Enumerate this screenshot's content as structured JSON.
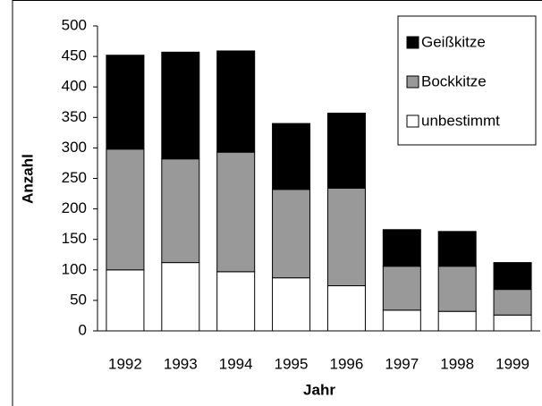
{
  "chart_data": {
    "type": "stacked_bar",
    "x_label": "Jahr",
    "y_label": "Anzahl",
    "categories": [
      "1992",
      "1993",
      "1994",
      "1995",
      "1996",
      "1997",
      "1998",
      "1999"
    ],
    "series": [
      {
        "name": "unbestimmt",
        "color": "#ffffff",
        "values": [
          100,
          112,
          97,
          87,
          74,
          34,
          32,
          26
        ]
      },
      {
        "name": "Bockkitze",
        "color": "#999999",
        "values": [
          198,
          170,
          196,
          145,
          160,
          72,
          74,
          42
        ]
      },
      {
        "name": "Geißkitze",
        "color": "#000000",
        "values": [
          154,
          175,
          166,
          108,
          123,
          60,
          57,
          44
        ]
      }
    ],
    "ylim": [
      0,
      500
    ],
    "yticks": [
      0,
      50,
      100,
      150,
      200,
      250,
      300,
      350,
      400,
      450,
      500
    ],
    "legend": "top-right"
  }
}
